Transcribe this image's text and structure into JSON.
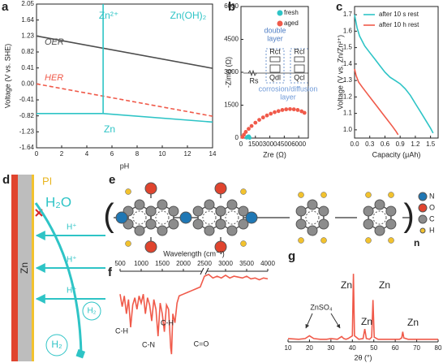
{
  "panel_labels": [
    "a",
    "b",
    "c",
    "d",
    "e",
    "f",
    "g"
  ],
  "chart_data": [
    {
      "type": "line",
      "xlabel": "pH",
      "ylabel": "Voltage (V  vs. SHE)",
      "frame": true,
      "x_axis_position": "bottom",
      "xlim": [
        0,
        14
      ],
      "xticks": [
        0,
        2,
        4,
        6,
        8,
        10,
        12,
        14
      ],
      "ylim": [
        -1.64,
        2.05
      ],
      "yticks": [
        2.05,
        1.64,
        1.23,
        0.82,
        0.41,
        {
          "value": 0,
          "label": "0.00"
        },
        -0.41,
        -0.82,
        -1.23,
        -1.64
      ],
      "series": [
        {
          "color": "#4d4d4d",
          "x": [
            0,
            14
          ],
          "values": [
            1.23,
            0.4
          ]
        },
        {
          "color": "#f05a4a",
          "dash": true,
          "x": [
            0,
            14
          ],
          "values": [
            0,
            -0.83
          ]
        },
        {
          "color": "#2ec4c6",
          "x": [
            0,
            5.3,
            14
          ],
          "values": [
            -0.76,
            -0.76,
            -0.98
          ]
        },
        {
          "color": "#2ec4c6",
          "x": [
            5.3,
            5.3
          ],
          "values": [
            -0.76,
            2.05
          ]
        }
      ],
      "annotations": [
        "OER",
        "HER",
        "Zn²⁺",
        "Zn(OH)₂",
        "Zn"
      ]
    },
    {
      "type": "scatter",
      "xlabel": "Zre (Ω)",
      "ylabel": "-Zimg (Ω)",
      "frame": true,
      "x_axis_position": "bottom",
      "xlim": [
        0,
        7000
      ],
      "xticks": [
        0,
        1500,
        3000,
        4500,
        6000
      ],
      "ylim": [
        0,
        6000
      ],
      "yticks": [
        0,
        1500,
        3000,
        4500,
        6000
      ],
      "series": [
        {
          "name": "fresh",
          "color": "#2ec4c6",
          "x": [
            600,
            700,
            800,
            850,
            900
          ],
          "values": [
            20,
            60,
            80,
            50,
            10
          ]
        },
        {
          "name": "aged",
          "color": "#f05a4a",
          "x": [
            150,
            300,
            500,
            800,
            1100,
            1500,
            1900,
            2300,
            2700,
            3100,
            3500,
            3900,
            4300,
            4700,
            5100,
            5500,
            5900,
            6300,
            6600
          ],
          "values": [
            50,
            150,
            280,
            420,
            550,
            700,
            830,
            940,
            1030,
            1110,
            1180,
            1230,
            1280,
            1310,
            1320,
            1310,
            1280,
            1220,
            1150
          ]
        }
      ],
      "annotations": [
        "double",
        "layer",
        "Rct",
        "Qdl",
        "Rs",
        "Rcl",
        "Qcl",
        "corrosion/diffusion",
        "layer"
      ]
    },
    {
      "type": "line",
      "xlabel": "Capacity (μAh)",
      "ylabel": "Voltage (V vs. Zn/Zn²⁺)",
      "frame": true,
      "x_axis_position": "bottom",
      "xlim": [
        0,
        1.65
      ],
      "xticks": [
        {
          "value": 0,
          "label": "0.0"
        },
        0.3,
        0.6,
        0.9,
        1.2,
        1.5
      ],
      "ylim": [
        0.95,
        1.75
      ],
      "yticks": [
        {
          "value": 1,
          "label": "1.0"
        },
        1.1,
        1.2,
        1.3,
        1.4,
        1.5,
        1.6,
        1.7
      ],
      "series": [
        {
          "name": "after 10 s rest",
          "color": "#2ec4c6",
          "x": [
            0,
            0.05,
            0.1,
            0.2,
            0.3,
            0.4,
            0.5,
            0.6,
            0.7,
            0.8,
            0.9,
            1.0,
            1.1,
            1.2,
            1.3,
            1.4,
            1.5,
            1.55
          ],
          "values": [
            1.7,
            1.62,
            1.57,
            1.51,
            1.47,
            1.43,
            1.39,
            1.35,
            1.32,
            1.3,
            1.28,
            1.25,
            1.21,
            1.16,
            1.11,
            1.06,
            1.01,
            0.98
          ]
        },
        {
          "name": "after 10 h rest",
          "color": "#f05a4a",
          "x": [
            0,
            0.03,
            0.08,
            0.15,
            0.25,
            0.35,
            0.45,
            0.55,
            0.65,
            0.75,
            0.82,
            0.86
          ],
          "values": [
            1.37,
            1.33,
            1.29,
            1.26,
            1.22,
            1.18,
            1.14,
            1.1,
            1.06,
            1.02,
            0.99,
            0.97
          ]
        }
      ]
    },
    {
      "type": "line",
      "xlabel": "Wavelength (cm⁻¹)",
      "frame": false,
      "x_axis_position": "top",
      "axis_break": 2500,
      "xlim": [
        500,
        4000
      ],
      "xticks": [
        500,
        1000,
        1500,
        2000,
        2500,
        3000,
        3500,
        4000
      ],
      "series": [
        {
          "color": "#f05a4a",
          "x": [
            500,
            550,
            600,
            650,
            700,
            750,
            800,
            850,
            900,
            950,
            1000,
            1050,
            1100,
            1150,
            1200,
            1250,
            1300,
            1350,
            1400,
            1450,
            1500,
            1550,
            1600,
            1650,
            1700,
            1720,
            1750,
            1800,
            1850,
            1900,
            2000,
            2100,
            2200,
            2300,
            2400,
            2500,
            2600,
            2700,
            2800,
            2900,
            3000,
            3100,
            3200,
            3300,
            3400,
            3500,
            3600,
            3700,
            3800,
            3900,
            4000
          ],
          "values": [
            0.72,
            0.58,
            0.7,
            0.5,
            0.66,
            0.35,
            0.6,
            0.68,
            0.55,
            0.7,
            0.62,
            0.72,
            0.5,
            0.68,
            0.6,
            0.42,
            0.66,
            0.55,
            0.25,
            0.62,
            0.5,
            0.3,
            0.6,
            0.55,
            0.12,
            0.05,
            0.5,
            0.4,
            0.62,
            0.7,
            0.72,
            0.74,
            0.76,
            0.78,
            0.8,
            0.92,
            0.94,
            0.9,
            0.92,
            0.9,
            0.93,
            0.9,
            0.92,
            0.91,
            0.9,
            0.92,
            0.89,
            0.9,
            0.88,
            0.9,
            0.89
          ]
        }
      ],
      "annotations": [
        "C-H",
        "C-N",
        "C-H",
        "C=O"
      ]
    },
    {
      "type": "line",
      "xlabel": "2θ (°)",
      "frame": false,
      "x_axis_position": "bottom",
      "xlim": [
        10,
        80
      ],
      "xticks": [
        10,
        20,
        30,
        40,
        50,
        60,
        70,
        80
      ],
      "series": [
        {
          "color": "#f05a4a",
          "x": [
            10,
            15,
            18,
            20,
            22,
            25,
            28,
            30,
            33,
            35,
            36,
            37,
            38,
            40,
            40.5,
            41,
            43,
            45,
            45.8,
            46.5,
            48,
            49,
            49.6,
            50.2,
            52,
            55,
            58,
            60,
            62,
            63,
            63.5,
            64,
            66,
            70,
            75,
            80
          ],
          "values": [
            0.06,
            0.05,
            0.06,
            0.1,
            0.06,
            0.05,
            0.05,
            0.06,
            0.05,
            0.09,
            0.06,
            0.05,
            0.06,
            0.1,
            1.0,
            0.1,
            0.05,
            0.06,
            0.2,
            0.06,
            0.05,
            0.08,
            0.62,
            0.08,
            0.05,
            0.05,
            0.05,
            0.05,
            0.05,
            0.07,
            0.16,
            0.07,
            0.05,
            0.05,
            0.05,
            0.05
          ]
        }
      ],
      "annotations": [
        "ZnSO₄",
        "Zn",
        "Zn",
        "Zn",
        "Zn"
      ]
    }
  ],
  "diagrams": {
    "d": {
      "labels": [
        "PI",
        "Zn",
        "H₂O",
        "H⁺",
        "H⁺",
        "H⁺",
        "H₂",
        "H₂"
      ]
    },
    "e": {
      "legend": [
        "N",
        "O",
        "C",
        "H"
      ],
      "repeat": "n"
    }
  }
}
